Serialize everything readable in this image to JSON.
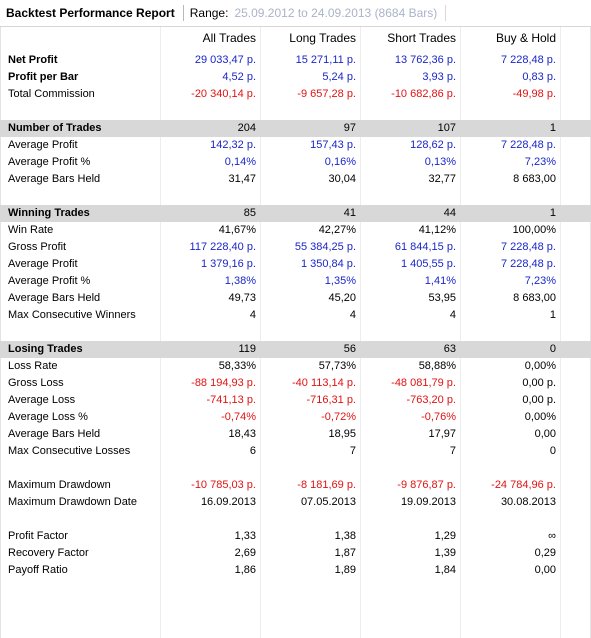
{
  "titlebar": {
    "title": "Backtest Performance Report",
    "range_label": "Range:",
    "range_value": "25.09.2012 to 24.09.2013 (8684 Bars)"
  },
  "columns": [
    "All Trades",
    "Long Trades",
    "Short Trades",
    "Buy & Hold"
  ],
  "colors": {
    "positive": "#1a26c8",
    "negative": "#e01313",
    "section_bg": "#d8d8d8"
  },
  "rows": [
    {
      "label": "Net Profit",
      "bold": true,
      "values": [
        "29 033,47 p.",
        "15 271,11 p.",
        "13 762,36 p.",
        "7 228,48 p."
      ],
      "colors": [
        "blue",
        "blue",
        "blue",
        "blue"
      ]
    },
    {
      "label": "Profit per Bar",
      "bold": true,
      "values": [
        "4,52 p.",
        "5,24 p.",
        "3,93 p.",
        "0,83 p."
      ],
      "colors": [
        "blue",
        "blue",
        "blue",
        "blue"
      ]
    },
    {
      "label": "Total Commission",
      "values": [
        "-20 340,14 p.",
        "-9 657,28 p.",
        "-10 682,86 p.",
        "-49,98 p."
      ],
      "colors": [
        "red",
        "red",
        "red",
        "red"
      ]
    },
    {
      "label": "Number of Trades",
      "section": true,
      "values": [
        "204",
        "97",
        "107",
        "1"
      ]
    },
    {
      "label": "Average Profit",
      "values": [
        "142,32 p.",
        "157,43 p.",
        "128,62 p.",
        "7 228,48 p."
      ],
      "colors": [
        "blue",
        "blue",
        "blue",
        "blue"
      ]
    },
    {
      "label": "Average Profit %",
      "values": [
        "0,14%",
        "0,16%",
        "0,13%",
        "7,23%"
      ],
      "colors": [
        "blue",
        "blue",
        "blue",
        "blue"
      ]
    },
    {
      "label": "Average Bars Held",
      "values": [
        "31,47",
        "30,04",
        "32,77",
        "8 683,00"
      ]
    },
    {
      "label": "Winning Trades",
      "section": true,
      "values": [
        "85",
        "41",
        "44",
        "1"
      ]
    },
    {
      "label": "Win Rate",
      "values": [
        "41,67%",
        "42,27%",
        "41,12%",
        "100,00%"
      ]
    },
    {
      "label": "Gross Profit",
      "values": [
        "117 228,40 p.",
        "55 384,25 p.",
        "61 844,15 p.",
        "7 228,48 p."
      ],
      "colors": [
        "blue",
        "blue",
        "blue",
        "blue"
      ]
    },
    {
      "label": "Average Profit",
      "values": [
        "1 379,16 p.",
        "1 350,84 p.",
        "1 405,55 p.",
        "7 228,48 p."
      ],
      "colors": [
        "blue",
        "blue",
        "blue",
        "blue"
      ]
    },
    {
      "label": "Average Profit %",
      "values": [
        "1,38%",
        "1,35%",
        "1,41%",
        "7,23%"
      ],
      "colors": [
        "blue",
        "blue",
        "blue",
        "blue"
      ]
    },
    {
      "label": "Average Bars Held",
      "values": [
        "49,73",
        "45,20",
        "53,95",
        "8 683,00"
      ]
    },
    {
      "label": "Max Consecutive Winners",
      "values": [
        "4",
        "4",
        "4",
        "1"
      ]
    },
    {
      "label": "Losing Trades",
      "section": true,
      "values": [
        "119",
        "56",
        "63",
        "0"
      ]
    },
    {
      "label": "Loss Rate",
      "values": [
        "58,33%",
        "57,73%",
        "58,88%",
        "0,00%"
      ]
    },
    {
      "label": "Gross Loss",
      "values": [
        "-88 194,93 p.",
        "-40 113,14 p.",
        "-48 081,79 p.",
        "0,00 p."
      ],
      "colors": [
        "red",
        "red",
        "red",
        ""
      ]
    },
    {
      "label": "Average Loss",
      "values": [
        "-741,13 p.",
        "-716,31 p.",
        "-763,20 p.",
        "0,00 p."
      ],
      "colors": [
        "red",
        "red",
        "red",
        ""
      ]
    },
    {
      "label": "Average Loss %",
      "values": [
        "-0,74%",
        "-0,72%",
        "-0,76%",
        "0,00%"
      ],
      "colors": [
        "red",
        "red",
        "red",
        ""
      ]
    },
    {
      "label": "Average Bars Held",
      "values": [
        "18,43",
        "18,95",
        "17,97",
        "0,00"
      ]
    },
    {
      "label": "Max Consecutive Losses",
      "values": [
        "6",
        "7",
        "7",
        "0"
      ]
    },
    {
      "label": "Maximum Drawdown",
      "values": [
        "-10 785,03 p.",
        "-8 181,69 p.",
        "-9 876,87 p.",
        "-24 784,96 p."
      ],
      "colors": [
        "red",
        "red",
        "red",
        "red"
      ]
    },
    {
      "label": "Maximum Drawdown Date",
      "values": [
        "16.09.2013",
        "07.05.2013",
        "19.09.2013",
        "30.08.2013"
      ]
    },
    {
      "label": "Profit Factor",
      "values": [
        "1,33",
        "1,38",
        "1,29",
        "∞"
      ]
    },
    {
      "label": "Recovery Factor",
      "values": [
        "2,69",
        "1,87",
        "1,39",
        "0,29"
      ]
    },
    {
      "label": "Payoff Ratio",
      "values": [
        "1,86",
        "1,89",
        "1,84",
        "0,00"
      ]
    }
  ]
}
